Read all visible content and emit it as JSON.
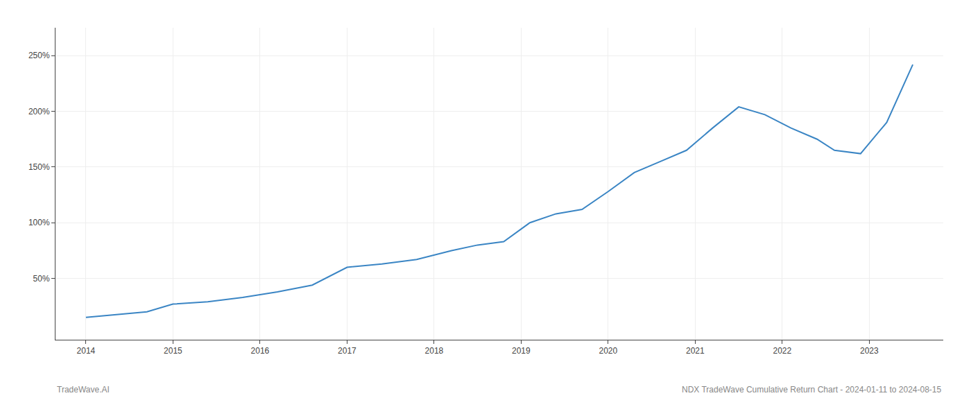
{
  "chart_data": {
    "type": "line",
    "x": [
      2014.0,
      2014.3,
      2014.7,
      2015.0,
      2015.4,
      2015.8,
      2016.2,
      2016.6,
      2017.0,
      2017.4,
      2017.8,
      2018.2,
      2018.5,
      2018.8,
      2019.1,
      2019.4,
      2019.7,
      2020.0,
      2020.3,
      2020.6,
      2020.9,
      2021.2,
      2021.5,
      2021.8,
      2022.1,
      2022.4,
      2022.6,
      2022.9,
      2023.2,
      2023.5
    ],
    "values": [
      15,
      17,
      20,
      27,
      29,
      33,
      38,
      44,
      60,
      63,
      67,
      75,
      80,
      83,
      100,
      108,
      112,
      128,
      145,
      155,
      165,
      185,
      204,
      197,
      185,
      175,
      165,
      162,
      190,
      242
    ],
    "color": "#3a85c4",
    "xlim": [
      2013.65,
      2023.85
    ],
    "xticks": [
      2014,
      2015,
      2016,
      2017,
      2018,
      2019,
      2020,
      2021,
      2022,
      2023
    ],
    "ylim": [
      -5,
      275
    ],
    "yticks": [
      {
        "value": 50,
        "label": "50%"
      },
      {
        "value": 100,
        "label": "100%"
      },
      {
        "value": 150,
        "label": "150%"
      },
      {
        "value": 200,
        "label": "200%"
      },
      {
        "value": 250,
        "label": "250%"
      }
    ],
    "grid": true,
    "annotations": [
      "TradeWave.AI",
      "NDX TradeWave Cumulative Return Chart - 2024-01-11 to 2024-08-15"
    ]
  }
}
